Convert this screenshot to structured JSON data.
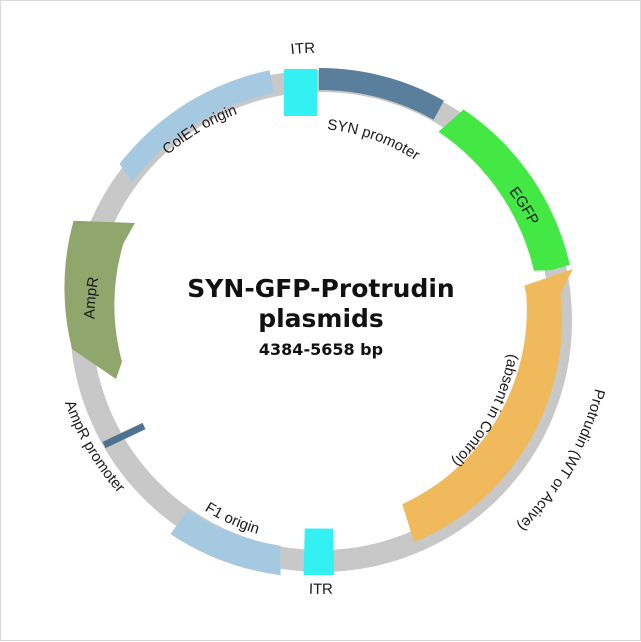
{
  "title": {
    "line1": "SYN-GFP-Protrudin",
    "line2": "plasmids",
    "size": "4384-5658 bp"
  },
  "backbone_color": "#c8c8c8",
  "features": {
    "itr_top": {
      "label": "ITR",
      "color": "#33f0f3"
    },
    "syn_promoter": {
      "label": "SYN promoter",
      "color": "#5a7f9c"
    },
    "egfp": {
      "label": "EGFP",
      "color": "#44e844"
    },
    "protrudin": {
      "label": "Protrudin (WT or Active)",
      "note": "(absent in Control)",
      "color": "#efb95c"
    },
    "itr_bottom": {
      "label": "ITR",
      "color": "#33f0f3"
    },
    "f1_origin": {
      "label": "F1 origin",
      "color": "#a4c9e0"
    },
    "ampr_promoter": {
      "label": "AmpR promoter",
      "color": "#4f7290"
    },
    "ampr": {
      "label": "AmpR",
      "color": "#8fa66d"
    },
    "cole1_origin": {
      "label": "ColE1 origin",
      "color": "#a4c9e0"
    }
  }
}
